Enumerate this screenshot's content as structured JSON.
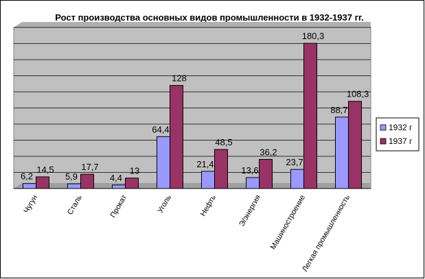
{
  "chart_data": {
    "type": "bar",
    "title": "Рост производства основных видов промышленности в 1932-1937 гг.",
    "categories": [
      "Чугун",
      "Сталь",
      "Прокат",
      "Уголь",
      "Нефть",
      "Э/энергия",
      "Машиностроение",
      "Легкая промышленность"
    ],
    "series": [
      {
        "name": "1932 г",
        "color": "#9999FF",
        "values": [
          6.2,
          5.9,
          4.4,
          64.4,
          21.4,
          13.6,
          23.7,
          88.7
        ],
        "labels": [
          "6,2",
          "5,9",
          "4,4",
          "64,4",
          "21,4",
          "13,6",
          "23,7",
          "88,7"
        ]
      },
      {
        "name": "1937 г",
        "color": "#993366",
        "values": [
          14.5,
          17.7,
          13,
          128,
          48.5,
          36.2,
          180.3,
          108.3
        ],
        "labels": [
          "14,5",
          "17,7",
          "13",
          "128",
          "48,5",
          "36,2",
          "180,3",
          "108,3"
        ]
      }
    ],
    "ylim": [
      0,
      200
    ],
    "grid": true,
    "plot_background": "#C0C0C0",
    "legend_position": "right"
  }
}
